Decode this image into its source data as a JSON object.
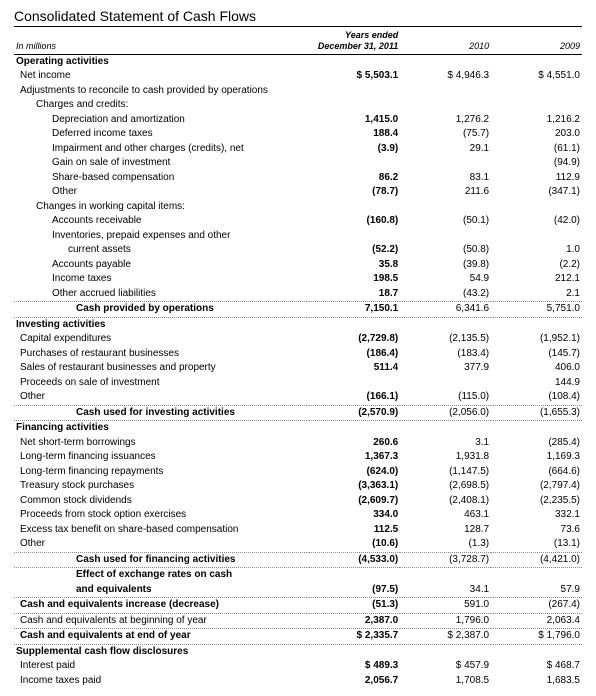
{
  "title": "Consolidated Statement of Cash Flows",
  "unitsLabel": "In millions",
  "periodLabel": "Years ended December 31,",
  "years": [
    "2011",
    "2010",
    "2009"
  ],
  "rows": [
    {
      "type": "section",
      "label": "Operating activities"
    },
    {
      "type": "line",
      "label": "Net income",
      "ind": 0,
      "vals": [
        "$  5,503.1",
        "$ 4,946.3",
        "$ 4,551.0"
      ],
      "bold": true
    },
    {
      "type": "line",
      "label": "Adjustments to reconcile to cash provided by operations",
      "ind": 0,
      "vals": [
        "",
        "",
        ""
      ]
    },
    {
      "type": "line",
      "label": "Charges and credits:",
      "ind": 2,
      "vals": [
        "",
        "",
        ""
      ]
    },
    {
      "type": "line",
      "label": "Depreciation and amortization",
      "ind": 3,
      "vals": [
        "1,415.0",
        "1,276.2",
        "1,216.2"
      ],
      "bold": true
    },
    {
      "type": "line",
      "label": "Deferred income taxes",
      "ind": 3,
      "vals": [
        "188.4",
        "(75.7)",
        "203.0"
      ],
      "bold": true
    },
    {
      "type": "line",
      "label": "Impairment and other charges (credits), net",
      "ind": 3,
      "vals": [
        "(3.9)",
        "29.1",
        "(61.1)"
      ],
      "bold": true
    },
    {
      "type": "line",
      "label": "Gain on sale of investment",
      "ind": 3,
      "vals": [
        "",
        "",
        "(94.9)"
      ]
    },
    {
      "type": "line",
      "label": "Share-based compensation",
      "ind": 3,
      "vals": [
        "86.2",
        "83.1",
        "112.9"
      ],
      "bold": true
    },
    {
      "type": "line",
      "label": "Other",
      "ind": 3,
      "vals": [
        "(78.7)",
        "211.6",
        "(347.1)"
      ],
      "bold": true
    },
    {
      "type": "line",
      "label": "Changes in working capital items:",
      "ind": 2,
      "vals": [
        "",
        "",
        ""
      ]
    },
    {
      "type": "line",
      "label": "Accounts receivable",
      "ind": 3,
      "vals": [
        "(160.8)",
        "(50.1)",
        "(42.0)"
      ],
      "bold": true
    },
    {
      "type": "line",
      "label": "Inventories, prepaid expenses and other",
      "ind": 3,
      "vals": [
        "",
        "",
        ""
      ]
    },
    {
      "type": "line",
      "label": "current assets",
      "ind": 4,
      "vals": [
        "(52.2)",
        "(50.8)",
        "1.0"
      ],
      "bold": true
    },
    {
      "type": "line",
      "label": "Accounts payable",
      "ind": 3,
      "vals": [
        "35.8",
        "(39.8)",
        "(2.2)"
      ],
      "bold": true
    },
    {
      "type": "line",
      "label": "Income taxes",
      "ind": 3,
      "vals": [
        "198.5",
        "54.9",
        "212.1"
      ],
      "bold": true
    },
    {
      "type": "line",
      "label": "Other accrued liabilities",
      "ind": 3,
      "vals": [
        "18.7",
        "(43.2)",
        "2.1"
      ],
      "bold": true,
      "dotted": true
    },
    {
      "type": "total",
      "label": "Cash provided by operations",
      "vals": [
        "7,150.1",
        "6,341.6",
        "5,751.0"
      ],
      "dotted": true
    },
    {
      "type": "section",
      "label": "Investing activities"
    },
    {
      "type": "line",
      "label": "Capital expenditures",
      "ind": 0,
      "vals": [
        "(2,729.8)",
        "(2,135.5)",
        "(1,952.1)"
      ],
      "bold": true
    },
    {
      "type": "line",
      "label": "Purchases of restaurant businesses",
      "ind": 0,
      "vals": [
        "(186.4)",
        "(183.4)",
        "(145.7)"
      ],
      "bold": true
    },
    {
      "type": "line",
      "label": "Sales of restaurant businesses and property",
      "ind": 0,
      "vals": [
        "511.4",
        "377.9",
        "406.0"
      ],
      "bold": true
    },
    {
      "type": "line",
      "label": "Proceeds on sale of investment",
      "ind": 0,
      "vals": [
        "",
        "",
        "144.9"
      ]
    },
    {
      "type": "line",
      "label": "Other",
      "ind": 0,
      "vals": [
        "(166.1)",
        "(115.0)",
        "(108.4)"
      ],
      "bold": true,
      "dotted": true
    },
    {
      "type": "total",
      "label": "Cash used for investing activities",
      "vals": [
        "(2,570.9)",
        "(2,056.0)",
        "(1,655.3)"
      ],
      "dotted": true
    },
    {
      "type": "section",
      "label": "Financing activities"
    },
    {
      "type": "line",
      "label": "Net short-term borrowings",
      "ind": 0,
      "vals": [
        "260.6",
        "3.1",
        "(285.4)"
      ],
      "bold": true
    },
    {
      "type": "line",
      "label": "Long-term financing issuances",
      "ind": 0,
      "vals": [
        "1,367.3",
        "1,931.8",
        "1,169.3"
      ],
      "bold": true
    },
    {
      "type": "line",
      "label": "Long-term financing repayments",
      "ind": 0,
      "vals": [
        "(624.0)",
        "(1,147.5)",
        "(664.6)"
      ],
      "bold": true
    },
    {
      "type": "line",
      "label": "Treasury stock purchases",
      "ind": 0,
      "vals": [
        "(3,363.1)",
        "(2,698.5)",
        "(2,797.4)"
      ],
      "bold": true
    },
    {
      "type": "line",
      "label": "Common stock dividends",
      "ind": 0,
      "vals": [
        "(2,609.7)",
        "(2,408.1)",
        "(2,235.5)"
      ],
      "bold": true
    },
    {
      "type": "line",
      "label": "Proceeds from stock option exercises",
      "ind": 0,
      "vals": [
        "334.0",
        "463.1",
        "332.1"
      ],
      "bold": true
    },
    {
      "type": "line",
      "label": "Excess tax benefit on share-based compensation",
      "ind": 0,
      "vals": [
        "112.5",
        "128.7",
        "73.6"
      ],
      "bold": true
    },
    {
      "type": "line",
      "label": "Other",
      "ind": 0,
      "vals": [
        "(10.6)",
        "(1.3)",
        "(13.1)"
      ],
      "bold": true,
      "dotted": true
    },
    {
      "type": "total",
      "label": "Cash used for financing activities",
      "vals": [
        "(4,533.0)",
        "(3,728.7)",
        "(4,421.0)"
      ],
      "dotted": true
    },
    {
      "type": "total",
      "label": "Effect of exchange rates on cash",
      "vals": [
        "",
        "",
        ""
      ]
    },
    {
      "type": "total",
      "label": "and equivalents",
      "vals": [
        "(97.5)",
        "34.1",
        "57.9"
      ],
      "dotted": true
    },
    {
      "type": "line",
      "label": "Cash and equivalents increase (decrease)",
      "ind": 0,
      "vals": [
        "(51.3)",
        "591.0",
        "(267.4)"
      ],
      "boldlbl": true,
      "bold": true,
      "dotted": true
    },
    {
      "type": "line",
      "label": "Cash and equivalents at beginning of year",
      "ind": 0,
      "vals": [
        "2,387.0",
        "1,796.0",
        "2,063.4"
      ],
      "bold": true,
      "dotted": true
    },
    {
      "type": "line",
      "label": "Cash and equivalents at end of year",
      "ind": 0,
      "vals": [
        "$  2,335.7",
        "$ 2,387.0",
        "$ 1,796.0"
      ],
      "boldlbl": true,
      "bold": true,
      "dotted": true
    },
    {
      "type": "section",
      "label": "Supplemental cash flow disclosures"
    },
    {
      "type": "line",
      "label": "Interest paid",
      "ind": 0,
      "vals": [
        "$    489.3",
        "$    457.9",
        "$    468.7"
      ],
      "bold": true
    },
    {
      "type": "line",
      "label": "Income taxes paid",
      "ind": 0,
      "vals": [
        "2,056.7",
        "1,708.5",
        "1,683.5"
      ],
      "bold": true
    }
  ]
}
